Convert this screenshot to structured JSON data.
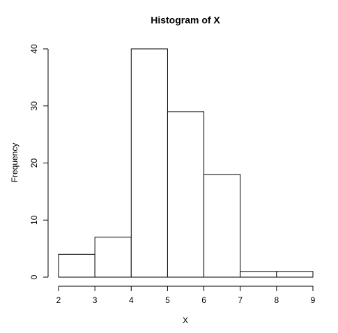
{
  "chart_data": {
    "type": "histogram",
    "title": "Histogram of X",
    "x_label": "X",
    "y_label": "Frequency",
    "bins": [
      2,
      3,
      4,
      5,
      6,
      7,
      8,
      9
    ],
    "values": [
      4,
      7,
      40,
      29,
      18,
      1,
      1
    ],
    "color": "#ffffff",
    "edgecolor": "#000000",
    "xlim": [
      2,
      9
    ],
    "xticks": [
      2,
      3,
      4,
      5,
      6,
      7,
      8,
      9
    ],
    "ylim": [
      0,
      40
    ],
    "yticks": [
      0,
      10,
      20,
      30,
      40
    ],
    "grid": false
  }
}
